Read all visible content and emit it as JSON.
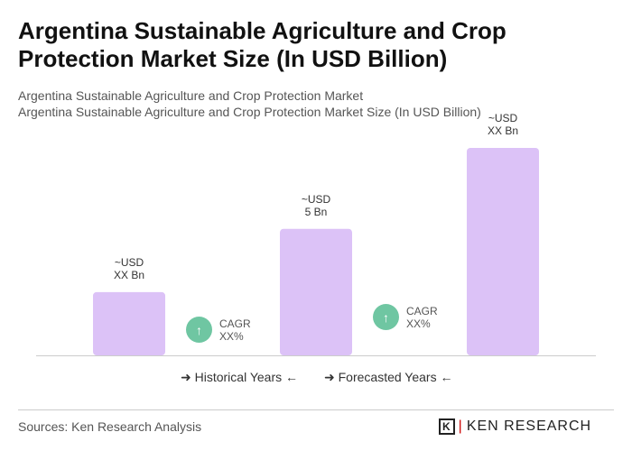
{
  "title": "Argentina Sustainable Agriculture and Crop Protection Market Size (In USD Billion)",
  "subtitle1": "Argentina Sustainable Agriculture and Crop Protection Market",
  "subtitle2": "Argentina Sustainable Agriculture and Crop Protection Market Size (In USD Billion)",
  "chart_data": {
    "type": "bar",
    "values": [
      2.5,
      5,
      8.2
    ],
    "data_labels": [
      [
        "~USD",
        "XX Bn"
      ],
      [
        "~USD",
        "5 Bn"
      ],
      [
        "~USD",
        "XX Bn"
      ]
    ],
    "bar_color": "#dcc2f7",
    "cagr": [
      {
        "label": "CAGR",
        "value": "XX%"
      },
      {
        "label": "CAGR",
        "value": "XX%"
      }
    ],
    "legend": [
      "Historical Years",
      "Forecasted Years"
    ],
    "grid": false
  },
  "sources": "Sources: Ken Research Analysis",
  "logo": "KEN RESEARCH"
}
